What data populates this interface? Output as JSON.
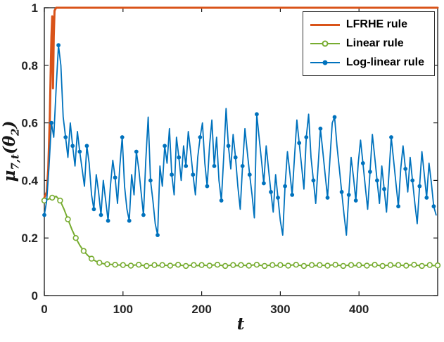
{
  "labels": {
    "xlabel": "t",
    "ylabel_mu": "μ",
    "ylabel_sub1": "7,t",
    "ylabel_mid": "(θ",
    "ylabel_sub2": "2",
    "ylabel_end": ")"
  },
  "axis": {
    "color": "#151515",
    "tick_label_color": "#262626"
  },
  "chart_data": {
    "type": "line",
    "title": "",
    "xlabel": "t",
    "ylabel": "μ_{7,t}(θ_2)",
    "xlim": [
      0,
      500
    ],
    "ylim": [
      0,
      1
    ],
    "x_ticks": [
      0,
      100,
      200,
      300,
      400
    ],
    "y_ticks": [
      0,
      0.2,
      0.4,
      0.6,
      0.8,
      1
    ],
    "grid": false,
    "legend_position": "top-right",
    "series": [
      {
        "id": "lfrhe-rule",
        "name": "LFRHE rule",
        "color": "#D95319",
        "marker": "none",
        "marker_every": 1,
        "line_width": 3,
        "points": [
          [
            0,
            0.34
          ],
          [
            3,
            0.36
          ],
          [
            5,
            0.44
          ],
          [
            7,
            0.62
          ],
          [
            8,
            0.76
          ],
          [
            9,
            0.9
          ],
          [
            10,
            0.97
          ],
          [
            11,
            0.72
          ],
          [
            12,
            0.9
          ],
          [
            13,
            0.99
          ],
          [
            15,
            1.0
          ],
          [
            500,
            1.0
          ]
        ]
      },
      {
        "id": "linear-rule",
        "name": "Linear rule",
        "color": "#77AC30",
        "marker": "circle-open",
        "marker_every": 2,
        "line_width": 2,
        "t_start": 0,
        "t_step": 5,
        "values": [
          0.33,
          0.335,
          0.34,
          0.345,
          0.33,
          0.3,
          0.265,
          0.23,
          0.2,
          0.175,
          0.155,
          0.14,
          0.128,
          0.12,
          0.114,
          0.111,
          0.109,
          0.108,
          0.107,
          0.106,
          0.106,
          0.105,
          0.104,
          0.106,
          0.107,
          0.105,
          0.103,
          0.105,
          0.106,
          0.104,
          0.106,
          0.105,
          0.104,
          0.106,
          0.107,
          0.105,
          0.103,
          0.105,
          0.106,
          0.104,
          0.106,
          0.105,
          0.104,
          0.106,
          0.107,
          0.105,
          0.103,
          0.105,
          0.106,
          0.104,
          0.106,
          0.105,
          0.104,
          0.106,
          0.107,
          0.105,
          0.103,
          0.105,
          0.106,
          0.104,
          0.106,
          0.105,
          0.104,
          0.106,
          0.107,
          0.105,
          0.103,
          0.105,
          0.106,
          0.104,
          0.106,
          0.105,
          0.104,
          0.106,
          0.107,
          0.105,
          0.103,
          0.105,
          0.106,
          0.104,
          0.106,
          0.105,
          0.104,
          0.106,
          0.107,
          0.105,
          0.103,
          0.105,
          0.106,
          0.104,
          0.106,
          0.105,
          0.104,
          0.106,
          0.107,
          0.105,
          0.103,
          0.105,
          0.106,
          0.104,
          0.105
        ]
      },
      {
        "id": "log-linear-rule",
        "name": "Log-linear rule",
        "color": "#0072BD",
        "marker": "dot",
        "marker_every": 3,
        "line_width": 1.8,
        "t_start": 0,
        "t_step": 3,
        "values": [
          0.28,
          0.33,
          0.45,
          0.6,
          0.55,
          0.72,
          0.87,
          0.8,
          0.62,
          0.55,
          0.48,
          0.6,
          0.52,
          0.45,
          0.57,
          0.5,
          0.44,
          0.38,
          0.52,
          0.46,
          0.35,
          0.3,
          0.42,
          0.36,
          0.28,
          0.4,
          0.33,
          0.26,
          0.38,
          0.47,
          0.41,
          0.32,
          0.45,
          0.55,
          0.38,
          0.3,
          0.26,
          0.42,
          0.35,
          0.5,
          0.44,
          0.36,
          0.28,
          0.47,
          0.62,
          0.4,
          0.33,
          0.25,
          0.21,
          0.45,
          0.38,
          0.52,
          0.46,
          0.58,
          0.42,
          0.35,
          0.55,
          0.48,
          0.4,
          0.52,
          0.45,
          0.57,
          0.5,
          0.42,
          0.35,
          0.48,
          0.55,
          0.6,
          0.46,
          0.38,
          0.52,
          0.61,
          0.45,
          0.55,
          0.4,
          0.33,
          0.48,
          0.65,
          0.52,
          0.44,
          0.56,
          0.48,
          0.38,
          0.3,
          0.45,
          0.58,
          0.5,
          0.42,
          0.35,
          0.27,
          0.63,
          0.55,
          0.47,
          0.39,
          0.52,
          0.44,
          0.36,
          0.29,
          0.42,
          0.34,
          0.26,
          0.21,
          0.38,
          0.5,
          0.43,
          0.35,
          0.48,
          0.61,
          0.53,
          0.45,
          0.37,
          0.55,
          0.63,
          0.48,
          0.4,
          0.32,
          0.45,
          0.58,
          0.5,
          0.42,
          0.34,
          0.47,
          0.6,
          0.62,
          0.52,
          0.44,
          0.36,
          0.28,
          0.21,
          0.35,
          0.48,
          0.41,
          0.33,
          0.46,
          0.54,
          0.46,
          0.38,
          0.3,
          0.43,
          0.56,
          0.48,
          0.4,
          0.32,
          0.45,
          0.37,
          0.29,
          0.42,
          0.55,
          0.47,
          0.39,
          0.31,
          0.44,
          0.52,
          0.44,
          0.36,
          0.48,
          0.4,
          0.32,
          0.25,
          0.38,
          0.5,
          0.42,
          0.34,
          0.46,
          0.39,
          0.31,
          0.28
        ]
      }
    ]
  }
}
